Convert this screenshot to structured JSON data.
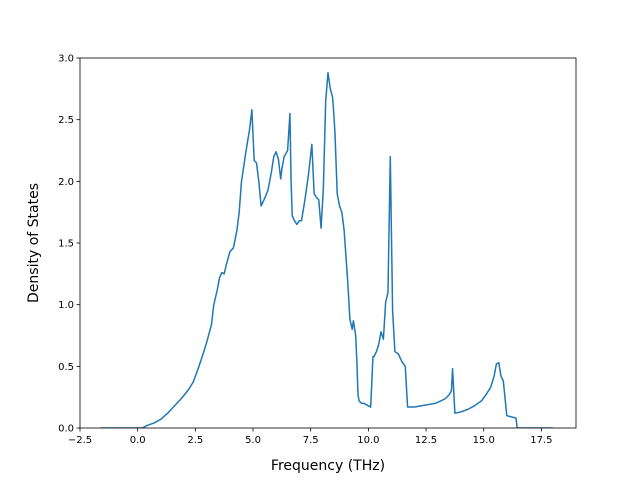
{
  "chart_data": {
    "type": "line",
    "title": "",
    "xlabel": "Frequency (THz)",
    "ylabel": "Density of States",
    "xlim": [
      -2.5,
      19.0
    ],
    "ylim": [
      0.0,
      3.0
    ],
    "grid": false,
    "legend": "none",
    "x_ticks": [
      -2.5,
      0.0,
      2.5,
      5.0,
      7.5,
      10.0,
      12.5,
      15.0,
      17.5
    ],
    "x_tick_labels": [
      "−2.5",
      "0.0",
      "2.5",
      "5.0",
      "7.5",
      "10.0",
      "12.5",
      "15.0",
      "17.5"
    ],
    "y_ticks": [
      0.0,
      0.5,
      1.0,
      1.5,
      2.0,
      2.5,
      3.0
    ],
    "y_tick_labels": [
      "0.0",
      "0.5",
      "1.0",
      "1.5",
      "2.0",
      "2.5",
      "3.0"
    ],
    "line_color": "#1f77b4",
    "series": [
      {
        "x": [
          -1.6,
          -1.0,
          -0.5,
          0.0,
          0.2,
          0.4,
          0.7,
          1.0,
          1.3,
          1.6,
          1.9,
          2.2,
          2.4,
          2.6,
          2.8,
          3.0,
          3.2,
          3.3,
          3.45,
          3.55,
          3.65,
          3.75,
          3.85,
          4.0,
          4.15,
          4.3,
          4.4,
          4.5,
          4.7,
          4.85,
          4.95,
          5.05,
          5.15,
          5.25,
          5.35,
          5.5,
          5.65,
          5.8,
          5.9,
          6.0,
          6.1,
          6.2,
          6.25,
          6.35,
          6.5,
          6.6,
          6.65,
          6.7,
          6.8,
          6.9,
          7.0,
          7.1,
          7.25,
          7.4,
          7.55,
          7.65,
          7.75,
          7.85,
          7.95,
          8.05,
          8.15,
          8.25,
          8.35,
          8.45,
          8.5,
          8.55,
          8.65,
          8.75,
          8.85,
          8.95,
          9.1,
          9.2,
          9.3,
          9.35,
          9.45,
          9.5,
          9.55,
          9.6,
          9.7,
          9.8,
          10.1,
          10.2,
          10.25,
          10.35,
          10.45,
          10.55,
          10.65,
          10.75,
          10.85,
          10.95,
          11.05,
          11.15,
          11.3,
          11.45,
          11.6,
          11.7,
          12.0,
          12.3,
          12.6,
          12.9,
          13.15,
          13.35,
          13.5,
          13.6,
          13.65,
          13.75,
          14.0,
          14.3,
          14.6,
          14.9,
          15.1,
          15.3,
          15.45,
          15.55,
          15.65,
          15.75,
          15.85,
          16.0,
          16.2,
          16.4,
          16.45,
          17.0,
          18.0
        ],
        "y": [
          0.0,
          0.0,
          0.0,
          0.0,
          0.0,
          0.02,
          0.04,
          0.07,
          0.12,
          0.18,
          0.24,
          0.31,
          0.37,
          0.47,
          0.58,
          0.7,
          0.84,
          1.0,
          1.12,
          1.22,
          1.26,
          1.25,
          1.33,
          1.43,
          1.46,
          1.6,
          1.75,
          2.0,
          2.25,
          2.42,
          2.58,
          2.17,
          2.15,
          2.0,
          1.8,
          1.86,
          1.93,
          2.08,
          2.2,
          2.24,
          2.18,
          2.02,
          2.1,
          2.2,
          2.25,
          2.55,
          2.0,
          1.72,
          1.68,
          1.65,
          1.68,
          1.68,
          1.85,
          2.05,
          2.3,
          1.9,
          1.87,
          1.85,
          1.62,
          1.95,
          2.65,
          2.88,
          2.75,
          2.68,
          2.55,
          2.4,
          1.9,
          1.8,
          1.75,
          1.6,
          1.2,
          0.88,
          0.8,
          0.87,
          0.75,
          0.55,
          0.27,
          0.22,
          0.2,
          0.2,
          0.17,
          0.58,
          0.58,
          0.62,
          0.68,
          0.78,
          0.72,
          1.02,
          1.1,
          2.2,
          0.95,
          0.62,
          0.6,
          0.54,
          0.5,
          0.17,
          0.17,
          0.18,
          0.19,
          0.2,
          0.22,
          0.24,
          0.27,
          0.3,
          0.48,
          0.12,
          0.13,
          0.15,
          0.18,
          0.22,
          0.27,
          0.33,
          0.42,
          0.52,
          0.53,
          0.42,
          0.38,
          0.1,
          0.09,
          0.08,
          0.0,
          0.0,
          0.0
        ]
      }
    ]
  }
}
